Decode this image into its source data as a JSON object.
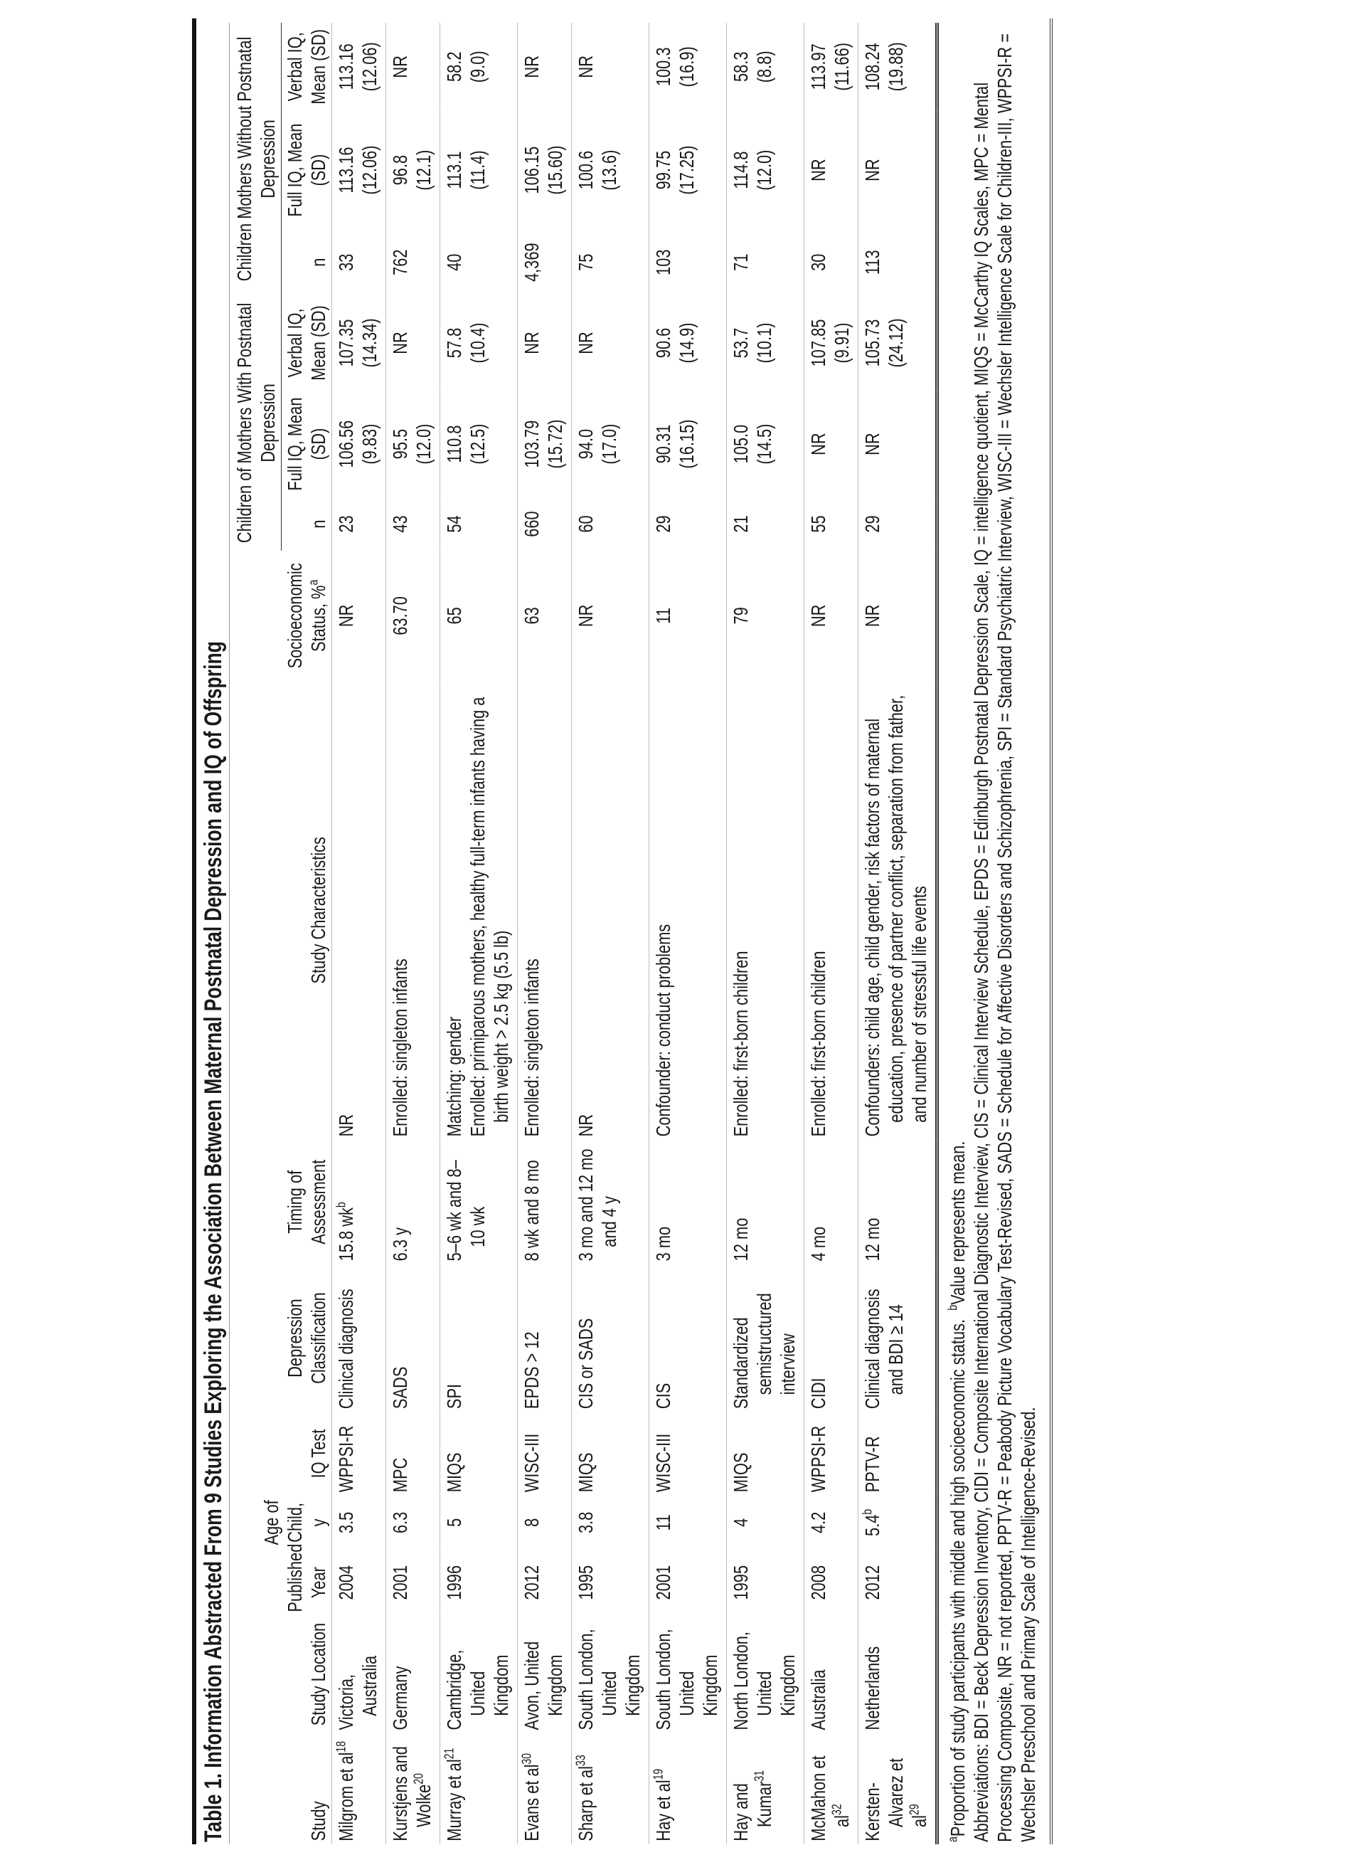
{
  "title": "Table 1. Information Abstracted From 9 Studies Exploring the Association Between Maternal Postnatal Depression and IQ of Offspring",
  "headers": {
    "study": "Study",
    "location": "Study Location",
    "year": "Published Year",
    "age": "Age of Child, y",
    "iq_test": "IQ Test",
    "dep_class": "Depression Classification",
    "timing": "Timing of Assessment",
    "characteristics": "Study Characteristics",
    "ses": "Socioeconomic Status, %",
    "ses_sup": "a",
    "group_with": "Children of Mothers With Postnatal Depression",
    "group_without": "Children Mothers Without Postnatal Depression",
    "n": "n",
    "full_iq": "Full IQ, Mean (SD)",
    "verbal_iq": "Verbal IQ, Mean (SD)"
  },
  "rows": [
    {
      "study": "Milgrom et al",
      "ref": "18",
      "location": "Victoria, Australia",
      "year": "2004",
      "age": "3.5",
      "age_sup": "",
      "iq_test": "WPPSI-R",
      "dep": "Clinical diagnosis",
      "timing": "15.8 wk",
      "timing_sup": "b",
      "chars": "NR",
      "ses": "NR",
      "w_n": "23",
      "w_full": "106.56",
      "w_full_sd": "(9.83)",
      "w_verbal": "107.35",
      "w_verbal_sd": "(14.34)",
      "wo_n": "33",
      "wo_full": "113.16",
      "wo_full_sd": "(12.06)",
      "wo_verbal": "113.16",
      "wo_verbal_sd": "(12.06)"
    },
    {
      "study": "Kurstjens and Wolke",
      "ref": "20",
      "location": "Germany",
      "year": "2001",
      "age": "6.3",
      "age_sup": "",
      "iq_test": "MPC",
      "dep": "SADS",
      "timing": "6.3 y",
      "timing_sup": "",
      "chars": "Enrolled: singleton infants",
      "ses": "63.70",
      "w_n": "43",
      "w_full": "95.5",
      "w_full_sd": "(12.0)",
      "w_verbal": "NR",
      "w_verbal_sd": "",
      "wo_n": "762",
      "wo_full": "96.8",
      "wo_full_sd": "(12.1)",
      "wo_verbal": "NR",
      "wo_verbal_sd": ""
    },
    {
      "study": "Murray et al",
      "ref": "21",
      "location": "Cambridge, United Kingdom",
      "year": "1996",
      "age": "5",
      "age_sup": "",
      "iq_test": "MIQS",
      "dep": "SPI",
      "timing": "5–6 wk and 8–10 wk",
      "timing_sup": "",
      "chars": "Matching: gender",
      "chars2": "Enrolled: primiparous mothers, healthy full-term infants having a birth weight > 2.5 kg (5.5 lb)",
      "ses": "65",
      "w_n": "54",
      "w_full": "110.8",
      "w_full_sd": "(12.5)",
      "w_verbal": "57.8",
      "w_verbal_sd": "(10.4)",
      "wo_n": "40",
      "wo_full": "113.1",
      "wo_full_sd": "(11.4)",
      "wo_verbal": "58.2",
      "wo_verbal_sd": "(9.0)"
    },
    {
      "study": "Evans et al",
      "ref": "30",
      "location": "Avon, United Kingdom",
      "year": "2012",
      "age": "8",
      "age_sup": "",
      "iq_test": "WISC-III",
      "dep": "EPDS > 12",
      "timing": "8 wk and 8 mo",
      "timing_sup": "",
      "chars": "Enrolled: singleton infants",
      "ses": "63",
      "w_n": "660",
      "w_full": "103.79",
      "w_full_sd": "(15.72)",
      "w_verbal": "NR",
      "w_verbal_sd": "",
      "wo_n": "4,369",
      "wo_full": "106.15",
      "wo_full_sd": "(15.60)",
      "wo_verbal": "NR",
      "wo_verbal_sd": ""
    },
    {
      "study": "Sharp et al",
      "ref": "33",
      "location": "South London, United Kingdom",
      "year": "1995",
      "age": "3.8",
      "age_sup": "",
      "iq_test": "MIQS",
      "dep": "CIS or SADS",
      "timing": "3 mo and 12 mo and 4 y",
      "timing_sup": "",
      "chars": "NR",
      "ses": "NR",
      "w_n": "60",
      "w_full": "94.0",
      "w_full_sd": "(17.0)",
      "w_verbal": "NR",
      "w_verbal_sd": "",
      "wo_n": "75",
      "wo_full": "100.6",
      "wo_full_sd": "(13.6)",
      "wo_verbal": "NR",
      "wo_verbal_sd": ""
    },
    {
      "study": "Hay et al",
      "ref": "19",
      "location": "South London, United Kingdom",
      "year": "2001",
      "age": "11",
      "age_sup": "",
      "iq_test": "WISC-III",
      "dep": "CIS",
      "timing": "3 mo",
      "timing_sup": "",
      "chars": "Confounder: conduct problems",
      "ses": "11",
      "w_n": "29",
      "w_full": "90.31",
      "w_full_sd": "(16.15)",
      "w_verbal": "90.6",
      "w_verbal_sd": "(14.9)",
      "wo_n": "103",
      "wo_full": "99.75",
      "wo_full_sd": "(17.25)",
      "wo_verbal": "100.3",
      "wo_verbal_sd": "(16.9)"
    },
    {
      "study": "Hay and Kumar",
      "ref": "31",
      "location": "North London, United Kingdom",
      "year": "1995",
      "age": "4",
      "age_sup": "",
      "iq_test": "MIQS",
      "dep": "Standardized semistructured interview",
      "timing": "12 mo",
      "timing_sup": "",
      "chars": "Enrolled: first-born children",
      "ses": "79",
      "w_n": "21",
      "w_full": "105.0",
      "w_full_sd": "(14.5)",
      "w_verbal": "53.7",
      "w_verbal_sd": "(10.1)",
      "wo_n": "71",
      "wo_full": "114.8",
      "wo_full_sd": "(12.0)",
      "wo_verbal": "58.3",
      "wo_verbal_sd": "(8.8)"
    },
    {
      "study": "McMahon et al",
      "ref": "32",
      "location": "Australia",
      "year": "2008",
      "age": "4.2",
      "age_sup": "",
      "iq_test": "WPPSI-R",
      "dep": "CIDI",
      "timing": "4 mo",
      "timing_sup": "",
      "chars": "Enrolled: first-born children",
      "ses": "NR",
      "w_n": "55",
      "w_full": "NR",
      "w_full_sd": "",
      "w_verbal": "107.85",
      "w_verbal_sd": "(9.91)",
      "wo_n": "30",
      "wo_full": "NR",
      "wo_full_sd": "",
      "wo_verbal": "113.97",
      "wo_verbal_sd": "(11.66)"
    },
    {
      "study": "Kersten-Alvarez et al",
      "ref": "29",
      "location": "Netherlands",
      "year": "2012",
      "age": "5.4",
      "age_sup": "b",
      "iq_test": "PPTV-R",
      "dep": "Clinical diagnosis and BDI ≥ 14",
      "timing": "12 mo",
      "timing_sup": "",
      "chars": "Confounders: child age, child gender, risk factors of maternal education, presence of partner conflict, separation from father, and number of stressful life events",
      "ses": "NR",
      "w_n": "29",
      "w_full": "NR",
      "w_full_sd": "",
      "w_verbal": "105.73",
      "w_verbal_sd": "(24.12)",
      "wo_n": "113",
      "wo_full": "NR",
      "wo_full_sd": "",
      "wo_verbal": "108.24",
      "wo_verbal_sd": "(19.88)"
    }
  ],
  "footnotes": {
    "a_mark": "a",
    "a_text": "Proportion of study participants with middle and high socioeconomic status.",
    "b_mark": "b",
    "b_text": "Value represents mean.",
    "abbreviations": "Abbreviations: BDI = Beck Depression Inventory, CIDI = Composite International Diagnostic Interview, CIS = Clinical Interview Schedule, EPDS = Edinburgh Postnatal Depression Scale, IQ = intelligence quotient, MIQS = McCarthy IQ Scales, MPC = Mental Processing Composite, NR = not reported, PPTV-R = Peabody Picture Vocabulary Test-Revised, SADS = Schedule for Affective Disorders and Schizophrenia, SPI = Standard Psychiatric Interview, WISC-III = Wechsler Intelligence Scale for Children-III, WPPSI-R = Wechsler Preschool and Primary Scale of Intelligence-Revised."
  }
}
